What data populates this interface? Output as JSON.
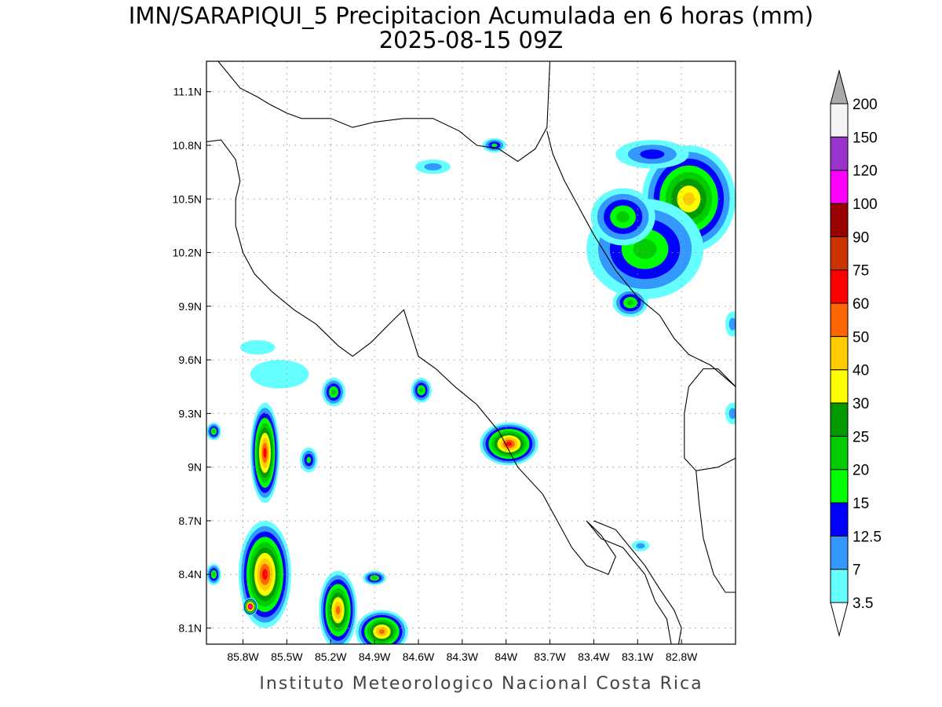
{
  "title": {
    "line1": "IMN/SARAPIQUI_5 Precipitacion Acumulada en 6 horas (mm)",
    "line2": "2025-08-15 09Z"
  },
  "credit": "Instituto Meteorologico Nacional Costa Rica",
  "map": {
    "lon_range": [
      -86.05,
      -82.43
    ],
    "lat_range": [
      8.01,
      11.27
    ],
    "grid": true,
    "lon_ticks": [
      {
        "value": -85.8,
        "label": "85.8W"
      },
      {
        "value": -85.5,
        "label": "85.5W"
      },
      {
        "value": -85.2,
        "label": "85.2W"
      },
      {
        "value": -84.9,
        "label": "84.9W"
      },
      {
        "value": -84.6,
        "label": "84.6W"
      },
      {
        "value": -84.3,
        "label": "84.3W"
      },
      {
        "value": -84.0,
        "label": "84W"
      },
      {
        "value": -83.7,
        "label": "83.7W"
      },
      {
        "value": -83.4,
        "label": "83.4W"
      },
      {
        "value": -83.1,
        "label": "83.1W"
      },
      {
        "value": -82.8,
        "label": "82.8W"
      }
    ],
    "lat_ticks": [
      {
        "value": 11.1,
        "label": "11.1N"
      },
      {
        "value": 10.8,
        "label": "10.8N"
      },
      {
        "value": 10.5,
        "label": "10.5N"
      },
      {
        "value": 10.2,
        "label": "10.2N"
      },
      {
        "value": 9.9,
        "label": "9.9N"
      },
      {
        "value": 9.6,
        "label": "9.6N"
      },
      {
        "value": 9.3,
        "label": "9.3N"
      },
      {
        "value": 9.0,
        "label": "9N"
      },
      {
        "value": 8.7,
        "label": "8.7N"
      },
      {
        "value": 8.4,
        "label": "8.4N"
      },
      {
        "value": 8.1,
        "label": "8.1N"
      }
    ]
  },
  "legend": {
    "levels": [
      {
        "label": "3.5",
        "color": "#66ffff"
      },
      {
        "label": "7",
        "color": "#3399ff"
      },
      {
        "label": "12.5",
        "color": "#0000ff"
      },
      {
        "label": "15",
        "color": "#00ff00"
      },
      {
        "label": "20",
        "color": "#00cc00"
      },
      {
        "label": "25",
        "color": "#009900"
      },
      {
        "label": "30",
        "color": "#ffff00"
      },
      {
        "label": "40",
        "color": "#ffcc00"
      },
      {
        "label": "50",
        "color": "#ff6600"
      },
      {
        "label": "60",
        "color": "#ff0000"
      },
      {
        "label": "75",
        "color": "#cc3300"
      },
      {
        "label": "90",
        "color": "#990000"
      },
      {
        "label": "100",
        "color": "#ff00ff"
      },
      {
        "label": "120",
        "color": "#9933cc"
      },
      {
        "label": "150",
        "color": "#f5f5f5"
      },
      {
        "label": "200",
        "color": "#aaaaaa"
      }
    ],
    "under_color": "#ffffff",
    "over_color": "#aaaaaa"
  },
  "coastlines": [
    [
      [
        -85.97,
        11.27
      ],
      [
        -85.9,
        11.2
      ],
      [
        -85.82,
        11.12
      ],
      [
        -85.7,
        11.07
      ],
      [
        -85.62,
        11.03
      ],
      [
        -85.5,
        10.98
      ],
      [
        -85.4,
        10.95
      ],
      [
        -85.2,
        10.95
      ],
      [
        -85.05,
        10.9
      ],
      [
        -84.9,
        10.93
      ],
      [
        -84.7,
        10.95
      ],
      [
        -84.5,
        10.95
      ],
      [
        -84.32,
        10.88
      ],
      [
        -84.2,
        10.8
      ],
      [
        -84.05,
        10.78
      ],
      [
        -83.92,
        10.71
      ],
      [
        -83.8,
        10.78
      ],
      [
        -83.72,
        10.9
      ],
      [
        -83.7,
        11.27
      ]
    ],
    [
      [
        -83.72,
        10.88
      ],
      [
        -83.68,
        10.75
      ],
      [
        -83.6,
        10.6
      ],
      [
        -83.5,
        10.45
      ],
      [
        -83.4,
        10.3
      ],
      [
        -83.25,
        10.1
      ],
      [
        -83.1,
        9.95
      ],
      [
        -82.95,
        9.85
      ],
      [
        -82.85,
        9.72
      ],
      [
        -82.75,
        9.63
      ],
      [
        -82.6,
        9.57
      ],
      [
        -82.43,
        9.45
      ]
    ],
    [
      [
        -86.05,
        10.82
      ],
      [
        -85.95,
        10.83
      ],
      [
        -85.85,
        10.72
      ],
      [
        -85.82,
        10.6
      ],
      [
        -85.85,
        10.5
      ],
      [
        -85.85,
        10.35
      ],
      [
        -85.8,
        10.2
      ],
      [
        -85.72,
        10.08
      ],
      [
        -85.6,
        9.98
      ],
      [
        -85.45,
        9.88
      ],
      [
        -85.3,
        9.8
      ],
      [
        -85.15,
        9.68
      ],
      [
        -85.05,
        9.62
      ],
      [
        -84.92,
        9.7
      ],
      [
        -84.8,
        9.8
      ],
      [
        -84.7,
        9.88
      ],
      [
        -84.65,
        9.75
      ],
      [
        -84.6,
        9.62
      ],
      [
        -84.48,
        9.55
      ],
      [
        -84.35,
        9.45
      ],
      [
        -84.2,
        9.35
      ],
      [
        -84.05,
        9.2
      ],
      [
        -83.92,
        9.0
      ],
      [
        -83.75,
        8.85
      ],
      [
        -83.65,
        8.7
      ],
      [
        -83.55,
        8.55
      ],
      [
        -83.45,
        8.45
      ],
      [
        -83.3,
        8.4
      ],
      [
        -83.25,
        8.5
      ],
      [
        -83.35,
        8.62
      ],
      [
        -83.45,
        8.7
      ],
      [
        -83.35,
        8.6
      ],
      [
        -83.2,
        8.55
      ],
      [
        -83.05,
        8.4
      ],
      [
        -82.98,
        8.25
      ],
      [
        -82.9,
        8.15
      ],
      [
        -82.87,
        8.01
      ]
    ],
    [
      [
        -83.4,
        8.7
      ],
      [
        -83.25,
        8.65
      ],
      [
        -83.15,
        8.55
      ],
      [
        -83.05,
        8.45
      ],
      [
        -82.95,
        8.32
      ],
      [
        -82.85,
        8.2
      ],
      [
        -82.8,
        8.1
      ],
      [
        -82.82,
        8.01
      ]
    ],
    [
      [
        -82.43,
        9.05
      ],
      [
        -82.55,
        9.0
      ],
      [
        -82.7,
        8.98
      ],
      [
        -82.78,
        9.05
      ],
      [
        -82.78,
        9.3
      ],
      [
        -82.75,
        9.45
      ],
      [
        -82.65,
        9.55
      ],
      [
        -82.55,
        9.55
      ],
      [
        -82.43,
        9.45
      ]
    ],
    [
      [
        -82.7,
        8.98
      ],
      [
        -82.68,
        8.8
      ],
      [
        -82.65,
        8.6
      ],
      [
        -82.58,
        8.4
      ],
      [
        -82.5,
        8.3
      ],
      [
        -82.43,
        8.3
      ]
    ]
  ],
  "precip_cells": [
    {
      "lon": -82.75,
      "lat": 10.5,
      "rx": 0.32,
      "ry": 0.3,
      "level": 7
    },
    {
      "lon": -83.05,
      "lat": 10.22,
      "rx": 0.4,
      "ry": 0.28,
      "level": 4
    },
    {
      "lon": -83.2,
      "lat": 10.4,
      "rx": 0.22,
      "ry": 0.16,
      "level": 4
    },
    {
      "lon": -83.15,
      "lat": 9.92,
      "rx": 0.12,
      "ry": 0.08,
      "level": 4
    },
    {
      "lon": -83.0,
      "lat": 10.75,
      "rx": 0.25,
      "ry": 0.08,
      "level": 2
    },
    {
      "lon": -84.08,
      "lat": 10.8,
      "rx": 0.08,
      "ry": 0.04,
      "level": 3
    },
    {
      "lon": -84.5,
      "lat": 10.68,
      "rx": 0.12,
      "ry": 0.04,
      "level": 1
    },
    {
      "lon": -83.98,
      "lat": 9.13,
      "rx": 0.2,
      "ry": 0.12,
      "level": 9
    },
    {
      "lon": -84.58,
      "lat": 9.43,
      "rx": 0.07,
      "ry": 0.07,
      "level": 4
    },
    {
      "lon": -85.18,
      "lat": 9.42,
      "rx": 0.08,
      "ry": 0.08,
      "level": 4
    },
    {
      "lon": -85.35,
      "lat": 9.04,
      "rx": 0.06,
      "ry": 0.07,
      "level": 3
    },
    {
      "lon": -85.65,
      "lat": 9.08,
      "rx": 0.1,
      "ry": 0.28,
      "level": 9
    },
    {
      "lon": -85.65,
      "lat": 8.4,
      "rx": 0.18,
      "ry": 0.3,
      "level": 9
    },
    {
      "lon": -85.75,
      "lat": 8.22,
      "rx": 0.05,
      "ry": 0.05,
      "level": 12
    },
    {
      "lon": -85.15,
      "lat": 8.2,
      "rx": 0.13,
      "ry": 0.22,
      "level": 8
    },
    {
      "lon": -84.85,
      "lat": 8.08,
      "rx": 0.18,
      "ry": 0.12,
      "level": 8
    },
    {
      "lon": -84.9,
      "lat": 8.38,
      "rx": 0.08,
      "ry": 0.04,
      "level": 4
    },
    {
      "lon": -86.0,
      "lat": 8.4,
      "rx": 0.05,
      "ry": 0.06,
      "level": 4
    },
    {
      "lon": -86.0,
      "lat": 9.2,
      "rx": 0.05,
      "ry": 0.05,
      "level": 4
    },
    {
      "lon": -83.08,
      "lat": 8.56,
      "rx": 0.06,
      "ry": 0.03,
      "level": 1
    },
    {
      "lon": -82.45,
      "lat": 9.8,
      "rx": 0.05,
      "ry": 0.07,
      "level": 1
    },
    {
      "lon": -82.45,
      "lat": 9.3,
      "rx": 0.05,
      "ry": 0.06,
      "level": 1
    },
    {
      "lon": -85.7,
      "lat": 9.67,
      "rx": 0.12,
      "ry": 0.04,
      "level": 0
    },
    {
      "lon": -85.55,
      "lat": 9.52,
      "rx": 0.2,
      "ry": 0.08,
      "level": 0
    }
  ]
}
